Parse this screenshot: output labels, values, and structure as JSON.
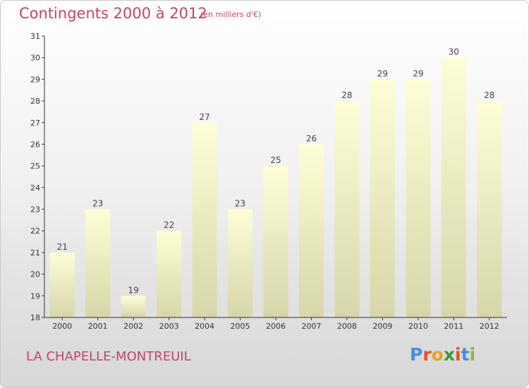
{
  "title": "Contingents 2000 à 2012",
  "subtitle": "(en milliers d'€)",
  "commune": "LA CHAPELLE-MONTREUIL",
  "logo": {
    "letters": [
      "P",
      "r",
      "o",
      "x",
      "i",
      "t",
      "i"
    ],
    "colors": [
      "#4a8fd6",
      "#e8502a",
      "#f0a020",
      "#3a9a3a",
      "#e8502a",
      "#4a8fd6",
      "#8ab832"
    ]
  },
  "colors": {
    "bar_top": "#fdfed4",
    "bar_bottom": "#d6d6a8",
    "title": "#c0446a",
    "axis": "#333333"
  },
  "chart_data": {
    "type": "bar",
    "categories": [
      "2000",
      "2001",
      "2002",
      "2003",
      "2004",
      "2005",
      "2006",
      "2007",
      "2008",
      "2009",
      "2010",
      "2011",
      "2012"
    ],
    "values": [
      21,
      23,
      19,
      22,
      27,
      23,
      25,
      26,
      28,
      29,
      29,
      30,
      28
    ],
    "ylim": [
      18,
      31
    ],
    "yticks": [
      18,
      19,
      20,
      21,
      22,
      23,
      24,
      25,
      26,
      27,
      28,
      29,
      30,
      31
    ],
    "grid": false
  }
}
